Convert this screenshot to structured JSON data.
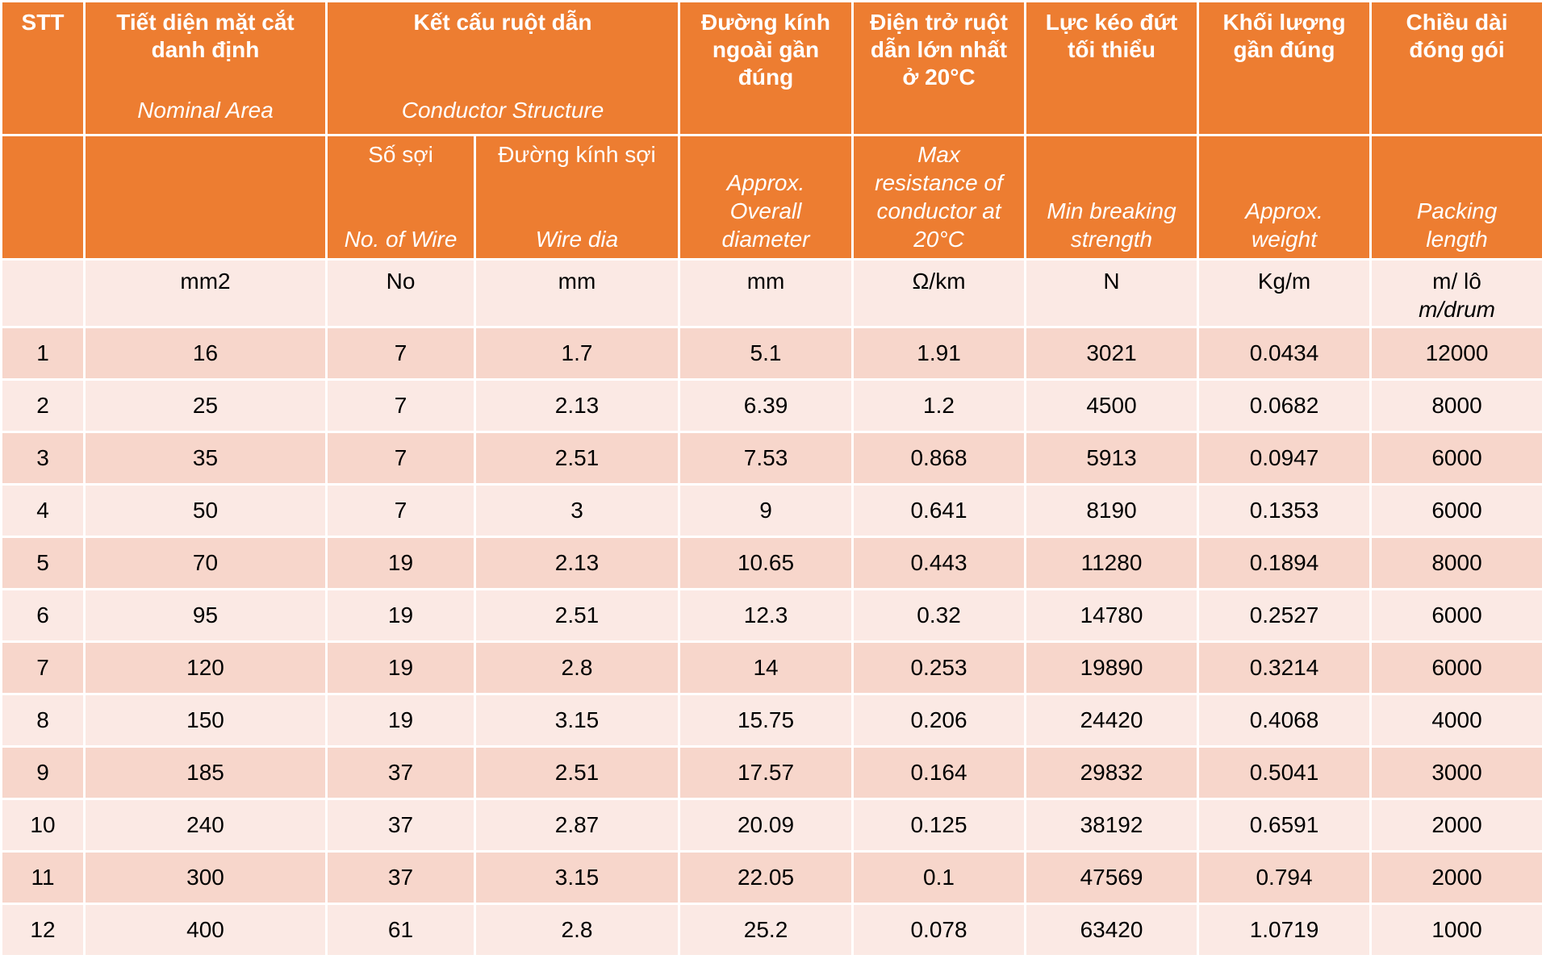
{
  "header": {
    "stt": "STT",
    "area_vi_1": "Tiết diện mặt cắt",
    "area_vi_2": "danh định",
    "area_en": "Nominal Area",
    "structure_vi": "Kết cấu ruột dẫn",
    "structure_en": "Conductor Structure",
    "diameter_vi_1": "Đường kính",
    "diameter_vi_2": "ngoài gần",
    "diameter_vi_3": "đúng",
    "resistance_vi_1": "Điện trở ruột",
    "resistance_vi_2": "dẫn lớn nhất",
    "resistance_vi_3": "ở 20°C",
    "breaking_vi_1": "Lực kéo đứt",
    "breaking_vi_2": "tối thiểu",
    "weight_vi_1": "Khối lượng",
    "weight_vi_2": "gần đúng",
    "packing_vi_1": "Chiều dài",
    "packing_vi_2": "đóng gói"
  },
  "subheader": {
    "wires_vi": "Số sợi",
    "wires_en": "No. of Wire",
    "wiredia_vi": "Đường kính sợi",
    "wiredia_en": "Wire dia",
    "diameter_en_1": "Approx.",
    "diameter_en_2": "Overall",
    "diameter_en_3": "diameter",
    "resistance_en_1": "Max",
    "resistance_en_2": "resistance of",
    "resistance_en_3": "conductor at",
    "resistance_en_4": "20°C",
    "breaking_en_1": "Min breaking",
    "breaking_en_2": "strength",
    "weight_en_1": "Approx.",
    "weight_en_2": "weight",
    "packing_en_1": "Packing",
    "packing_en_2": "length"
  },
  "units": {
    "stt": "",
    "area": "mm2",
    "wires": "No",
    "wiredia": "mm",
    "diameter": "mm",
    "resistance": "Ω/km",
    "breaking": "N",
    "weight": "Kg/m",
    "packing_1": "m/ lô",
    "packing_2": "m/drum"
  },
  "rows": [
    [
      "1",
      "16",
      "7",
      "1.7",
      "5.1",
      "1.91",
      "3021",
      "0.0434",
      "12000"
    ],
    [
      "2",
      "25",
      "7",
      "2.13",
      "6.39",
      "1.2",
      "4500",
      "0.0682",
      "8000"
    ],
    [
      "3",
      "35",
      "7",
      "2.51",
      "7.53",
      "0.868",
      "5913",
      "0.0947",
      "6000"
    ],
    [
      "4",
      "50",
      "7",
      "3",
      "9",
      "0.641",
      "8190",
      "0.1353",
      "6000"
    ],
    [
      "5",
      "70",
      "19",
      "2.13",
      "10.65",
      "0.443",
      "11280",
      "0.1894",
      "8000"
    ],
    [
      "6",
      "95",
      "19",
      "2.51",
      "12.3",
      "0.32",
      "14780",
      "0.2527",
      "6000"
    ],
    [
      "7",
      "120",
      "19",
      "2.8",
      "14",
      "0.253",
      "19890",
      "0.3214",
      "6000"
    ],
    [
      "8",
      "150",
      "19",
      "3.15",
      "15.75",
      "0.206",
      "24420",
      "0.4068",
      "4000"
    ],
    [
      "9",
      "185",
      "37",
      "2.51",
      "17.57",
      "0.164",
      "29832",
      "0.5041",
      "3000"
    ],
    [
      "10",
      "240",
      "37",
      "2.87",
      "20.09",
      "0.125",
      "38192",
      "0.6591",
      "2000"
    ],
    [
      "11",
      "300",
      "37",
      "3.15",
      "22.05",
      "0.1",
      "47569",
      "0.794",
      "2000"
    ],
    [
      "12",
      "400",
      "61",
      "2.8",
      "25.2",
      "0.078",
      "63420",
      "1.0719",
      "1000"
    ]
  ],
  "colors": {
    "header_bg": "#ed7d31",
    "row_dark": "#f7d6cb",
    "row_light": "#fbe9e4"
  }
}
